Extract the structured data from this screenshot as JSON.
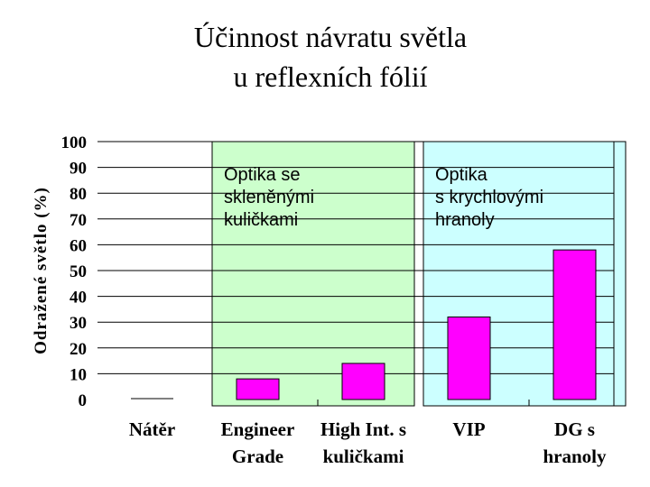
{
  "title": [
    "Účinnost návratu světla",
    "u reflexních fólií"
  ],
  "chart_data": {
    "type": "bar",
    "title": "Účinnost návratu světla u reflexních fólií",
    "xlabel": "",
    "ylabel": "Odražené světlo (%)",
    "ylim": [
      0,
      100
    ],
    "yticks": [
      0,
      10,
      20,
      30,
      40,
      50,
      60,
      70,
      80,
      90,
      100
    ],
    "grid": true,
    "categories": [
      [
        "Nátěr"
      ],
      [
        "Engineer",
        "Grade"
      ],
      [
        "High Int. s",
        "kuličkami"
      ],
      [
        "VIP"
      ],
      [
        "DG s",
        "hranoly"
      ]
    ],
    "values": [
      0,
      8,
      14,
      32,
      58
    ],
    "bar_color": "#ff00ff",
    "regions": [
      {
        "label": [
          "Optika se",
          "skleněnými",
          "kuličkami"
        ],
        "from_category": 1,
        "to_category": 2,
        "color": "#ccffcc"
      },
      {
        "label": [
          "Optika",
          "s krychlovými",
          "hranoly"
        ],
        "from_category": 3,
        "to_category": 4,
        "color": "#ccffff"
      }
    ]
  }
}
